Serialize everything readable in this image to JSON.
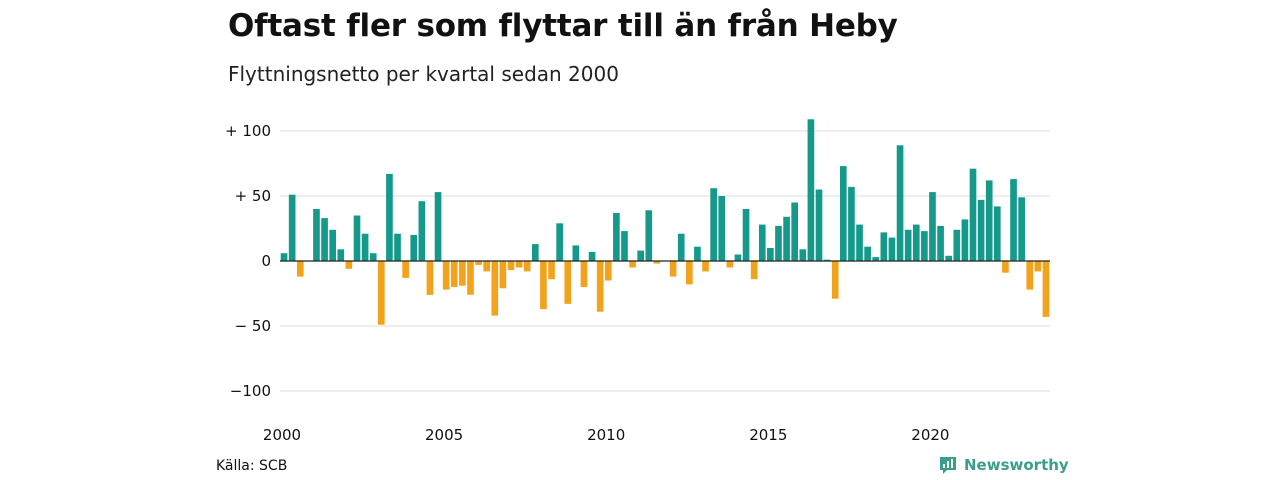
{
  "title": "Oftast fler som flyttar till än från Heby",
  "subtitle": "Flyttningsnetto per kvartal sedan 2000",
  "source": "Källa: SCB",
  "brand": {
    "name": "Newsworthy",
    "icon": "newsworthy-logo-icon"
  },
  "colors": {
    "positive": "#14998a",
    "negative": "#f2a31b",
    "grid": "#dddddd",
    "zero": "#222222"
  },
  "chart_data": {
    "type": "bar",
    "title": "Oftast fler som flyttar till än från Heby",
    "subtitle": "Flyttningsnetto per kvartal sedan 2000",
    "x_start": 2000,
    "periods_per_year": 4,
    "xticks": [
      "2000",
      "2005",
      "2010",
      "2015",
      "2020"
    ],
    "ytick_values": [
      100,
      50,
      0,
      -50,
      -100
    ],
    "ytick_labels": [
      "+ 100",
      "+  50",
      "0",
      "− 50",
      "−100"
    ],
    "ylim": [
      -100,
      110
    ],
    "grid": true,
    "values": [
      6,
      51,
      -12,
      0,
      40,
      33,
      24,
      9,
      -6,
      35,
      21,
      6,
      -49,
      67,
      21,
      -13,
      20,
      46,
      -26,
      53,
      -22,
      -20,
      -19,
      -26,
      -3,
      -8,
      -42,
      -21,
      -7,
      -5,
      -8,
      13,
      -37,
      -14,
      29,
      -33,
      12,
      -20,
      7,
      -39,
      -15,
      37,
      23,
      -5,
      8,
      39,
      -2,
      0,
      -12,
      21,
      -18,
      11,
      -8,
      56,
      50,
      -5,
      5,
      40,
      -14,
      28,
      10,
      27,
      34,
      45,
      9,
      109,
      55,
      1,
      -29,
      73,
      57,
      28,
      11,
      3,
      22,
      18,
      89,
      24,
      28,
      23,
      53,
      27,
      4,
      24,
      32,
      71,
      47,
      62,
      42,
      -9,
      63,
      49,
      -22,
      -8,
      -43
    ],
    "source": "Källa: SCB"
  }
}
